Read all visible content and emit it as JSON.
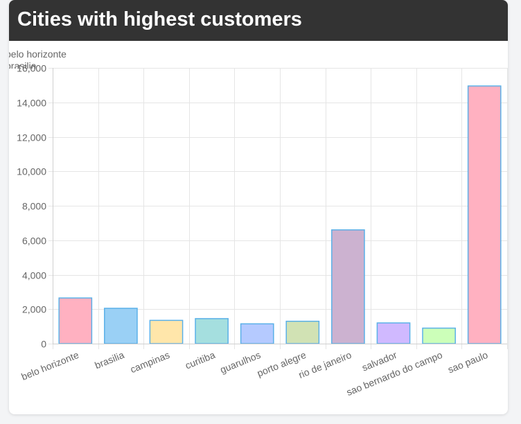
{
  "card": {
    "title": "Cities with highest customers"
  },
  "colors": {
    "header_bg": "#333333",
    "bar_border": "#5ab0e8",
    "grid": "#e5e5e5",
    "axis_text": "#666666"
  },
  "legend": {
    "items": [
      "belo horizonte",
      "brasilia"
    ]
  },
  "chart_data": {
    "type": "bar",
    "title": "Cities with highest customers",
    "categories": [
      "belo horizonte",
      "brasilia",
      "campinas",
      "curitiba",
      "guarulhos",
      "porto alegre",
      "rio de janeiro",
      "salvador",
      "sao bernardo do campo",
      "sao paulo"
    ],
    "values": [
      2650,
      2050,
      1350,
      1450,
      1150,
      1300,
      6600,
      1200,
      900,
      14950
    ],
    "bar_colors": [
      "#ffb1c1",
      "#9ad0f5",
      "#ffe6aa",
      "#a5dfdf",
      "#b5caff",
      "#d1e2b4",
      "#ccb2d0",
      "#d0b9ff",
      "#ccffb9",
      "#ffb1c1"
    ],
    "ylim": [
      0,
      16000
    ],
    "yticks": [
      0,
      2000,
      4000,
      6000,
      8000,
      10000,
      12000,
      14000,
      16000
    ],
    "ytick_labels": [
      "0",
      "2,000",
      "4,000",
      "6,000",
      "8,000",
      "10,000",
      "12,000",
      "14,000",
      "16,000"
    ],
    "xlabel": "",
    "ylabel": "",
    "grid": true,
    "legend_position": "top-left"
  }
}
